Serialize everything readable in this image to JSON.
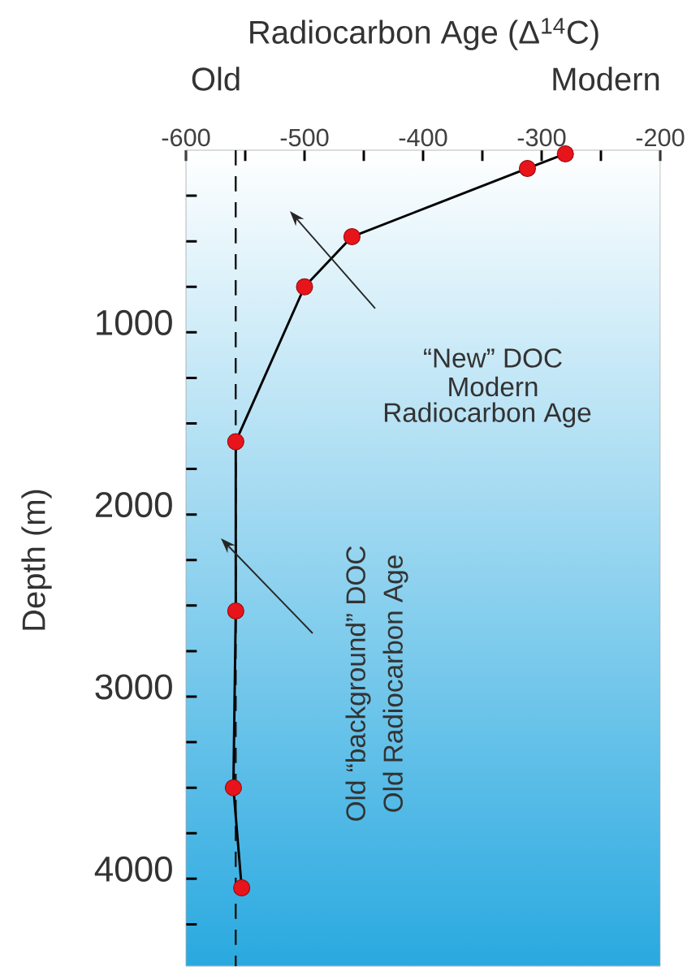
{
  "chart_data": {
    "type": "line",
    "xlabel": "Radiocarbon Age (Δ$^{14}$C)",
    "ylabel": "Depth (m)",
    "annotations": [
      "Old",
      "Modern",
      "“New” DOC",
      "Modern",
      "Radiocarbon Age",
      "Old “background” DOC",
      "Old Radiocarbon Age"
    ],
    "x": [
      -280,
      -312,
      -460,
      -500,
      -558,
      -558,
      -560,
      -553
    ],
    "series": [
      {
        "color": "#e8141b",
        "values": [
          20,
          100,
          475,
          750,
          1600,
          2530,
          3500,
          4050
        ]
      }
    ],
    "marker": "circle",
    "line_style": "solid",
    "xlim": [
      -600,
      -200
    ],
    "ylim": [
      4480,
      0
    ],
    "xticks": [
      -600,
      {
        "value": -550,
        "label": null
      },
      -500,
      {
        "value": -450,
        "label": null
      },
      -400,
      {
        "value": -350,
        "label": null
      },
      -300,
      {
        "value": -250,
        "label": null
      },
      -200
    ],
    "yticks": [
      {
        "value": 250,
        "label": null
      },
      {
        "value": 500,
        "label": null
      },
      {
        "value": 750,
        "label": null
      },
      1000,
      {
        "value": 1250,
        "label": null
      },
      {
        "value": 1500,
        "label": null
      },
      {
        "value": 1750,
        "label": null
      },
      2000,
      {
        "value": 2250,
        "label": null
      },
      {
        "value": 2500,
        "label": null
      },
      {
        "value": 2750,
        "label": null
      },
      3000,
      {
        "value": 3250,
        "label": null
      },
      {
        "value": 3500,
        "label": null
      },
      {
        "value": 3750,
        "label": null
      },
      4000,
      {
        "value": 4250,
        "label": null
      }
    ],
    "ref_lines": [
      {
        "axis": "x",
        "value": -558,
        "line_style": "dashed",
        "color": "#1a1a1a"
      }
    ]
  }
}
